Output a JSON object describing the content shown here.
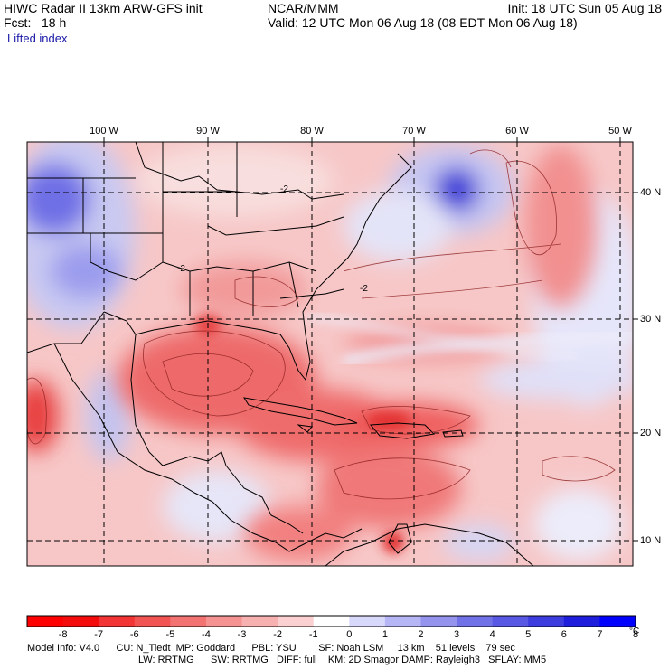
{
  "header": {
    "model_title": "HIWC Radar II 13km ARW-GFS init",
    "org": "NCAR/MMM",
    "init": "Init: 18 UTC Sun 05 Aug 18",
    "forecast": "Fcst:   18 h",
    "valid": "Valid: 12 UTC Mon 06 Aug 18 (08 EDT Mon 06 Aug 18)",
    "field": "Lifted index"
  },
  "map": {
    "longitude_labels": [
      "100 W",
      "90 W",
      "80 W",
      "70 W",
      "60 W",
      "50 W"
    ],
    "latitude_labels": [
      "40 N",
      "30 N",
      "20 N",
      "10 N"
    ],
    "contour_label": "-2",
    "colors": {
      "strong_negative": "#e8312d",
      "neutral": "#ffffff",
      "strong_positive": "#2020d8"
    }
  },
  "colorbar": {
    "ticks": [
      "-8",
      "-7",
      "-6",
      "-5",
      "-4",
      "-3",
      "-2",
      "-1",
      "0",
      "1",
      "2",
      "3",
      "4",
      "5",
      "6",
      "7",
      "8"
    ],
    "unit": "°C",
    "colors": [
      "#ff0000",
      "#f40c0c",
      "#f33434",
      "#f25454",
      "#f37373",
      "#f59292",
      "#f8b1b1",
      "#fbd0d0",
      "#ffffff",
      "#d8d8fb",
      "#b6b6f6",
      "#9494ee",
      "#7272e8",
      "#5858e4",
      "#3c3cdf",
      "#1e1edc",
      "#0000ff"
    ]
  },
  "info": {
    "line1": "Model Info: V4.0      CU: N_Tiedt  MP: Goddard      PBL: YSU        SF: Noah LSM     13 km    51 levels    79 sec",
    "line2": "LW: RRTMG      SW: RRTMG   DIFF: full    KM: 2D Smagor DAMP: Rayleigh3   SFLAY: MM5"
  }
}
